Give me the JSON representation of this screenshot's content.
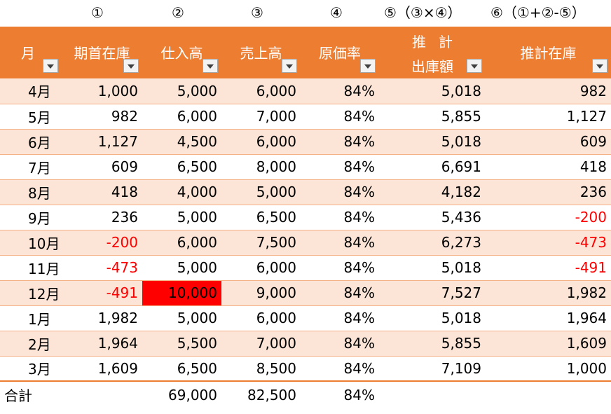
{
  "column_numbers": [
    "①",
    "②",
    "③",
    "④",
    "⑤（③×④）",
    "⑥（①+②-⑤）"
  ],
  "headers": {
    "month": "月",
    "opening_stock": "期首在庫",
    "purchases": "仕入高",
    "sales": "売上高",
    "cost_ratio": "原価率",
    "est_shipment_line1": "推計",
    "est_shipment_line2": "出庫額",
    "est_stock": "推計在庫"
  },
  "rows": [
    {
      "month": "4月",
      "opening": "1,000",
      "purchases": "5,000",
      "sales": "6,000",
      "ratio": "84%",
      "shipment": "5,018",
      "stock": "982"
    },
    {
      "month": "5月",
      "opening": "982",
      "purchases": "6,000",
      "sales": "7,000",
      "ratio": "84%",
      "shipment": "5,855",
      "stock": "1,127"
    },
    {
      "month": "6月",
      "opening": "1,127",
      "purchases": "4,500",
      "sales": "6,000",
      "ratio": "84%",
      "shipment": "5,018",
      "stock": "609"
    },
    {
      "month": "7月",
      "opening": "609",
      "purchases": "6,500",
      "sales": "8,000",
      "ratio": "84%",
      "shipment": "6,691",
      "stock": "418"
    },
    {
      "month": "8月",
      "opening": "418",
      "purchases": "4,000",
      "sales": "5,000",
      "ratio": "84%",
      "shipment": "4,182",
      "stock": "236"
    },
    {
      "month": "9月",
      "opening": "236",
      "purchases": "5,000",
      "sales": "6,500",
      "ratio": "84%",
      "shipment": "5,436",
      "stock": "-200"
    },
    {
      "month": "10月",
      "opening": "-200",
      "purchases": "6,000",
      "sales": "7,500",
      "ratio": "84%",
      "shipment": "6,273",
      "stock": "-473"
    },
    {
      "month": "11月",
      "opening": "-473",
      "purchases": "5,000",
      "sales": "6,000",
      "ratio": "84%",
      "shipment": "5,018",
      "stock": "-491"
    },
    {
      "month": "12月",
      "opening": "-491",
      "purchases": "10,000",
      "sales": "9,000",
      "ratio": "84%",
      "shipment": "7,527",
      "stock": "1,982"
    },
    {
      "month": "1月",
      "opening": "1,982",
      "purchases": "5,000",
      "sales": "6,000",
      "ratio": "84%",
      "shipment": "5,018",
      "stock": "1,964"
    },
    {
      "month": "2月",
      "opening": "1,964",
      "purchases": "5,500",
      "sales": "7,000",
      "ratio": "84%",
      "shipment": "5,855",
      "stock": "1,609"
    },
    {
      "month": "3月",
      "opening": "1,609",
      "purchases": "6,500",
      "sales": "8,500",
      "ratio": "84%",
      "shipment": "7,109",
      "stock": "1,000"
    }
  ],
  "total": {
    "label": "合計",
    "opening": "",
    "purchases": "69,000",
    "sales": "82,500",
    "ratio": "84%",
    "shipment": "",
    "stock": ""
  },
  "colors": {
    "header_bg": "#ED7D31",
    "band": "#FCE4D6",
    "negative": "#FF0000",
    "highlight_cell": "#FF0000"
  },
  "highlighted_cell": {
    "month": "12月",
    "column": "purchases"
  }
}
